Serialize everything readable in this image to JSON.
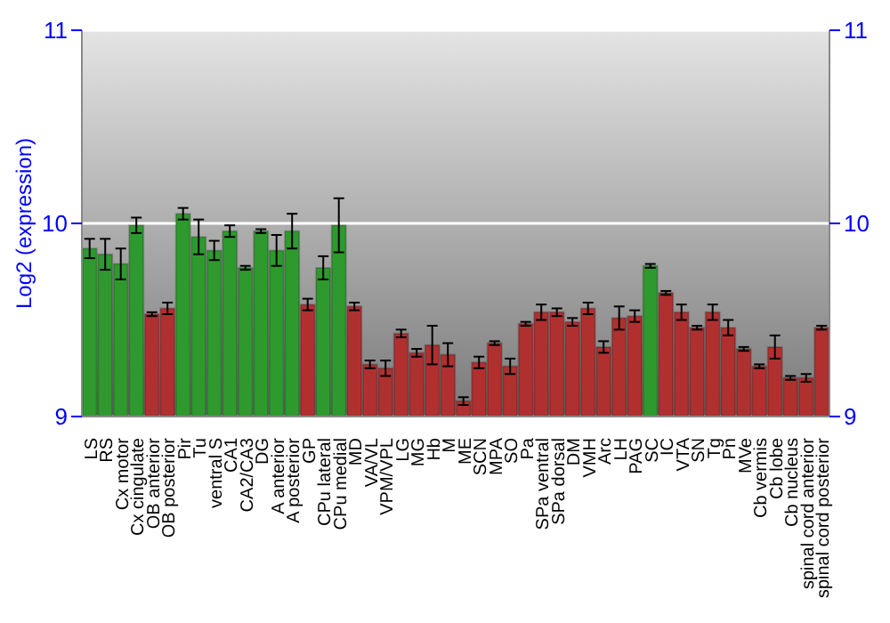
{
  "chart_data": {
    "type": "bar",
    "ylabel": "Log2 (expression)",
    "categories": [
      "LS",
      "RS",
      "Cx motor",
      "Cx cingulate",
      "OB anterior",
      "OB posterior",
      "Pir",
      "Tu",
      "ventral S",
      "CA1",
      "CA2/CA3",
      "DG",
      "A anterior",
      "A posterior",
      "GP",
      "CPu lateral",
      "CPu medial",
      "MD",
      "VA/VL",
      "VPM/VPL",
      "LG",
      "MG",
      "Hb",
      "M",
      "ME",
      "SCN",
      "MPA",
      "SO",
      "Pa",
      "SPa ventral",
      "SPa dorsal",
      "DM",
      "VMH",
      "Arc",
      "LH",
      "PAG",
      "SC",
      "IC",
      "VTA",
      "SN",
      "Tg",
      "Pn",
      "MVe",
      "Cb vermis",
      "Cb lobe",
      "Cb nucleus",
      "spinal cord anterior",
      "spinal cord posterior"
    ],
    "values": [
      9.87,
      9.84,
      9.79,
      9.99,
      9.53,
      9.56,
      10.05,
      9.93,
      9.86,
      9.96,
      9.77,
      9.96,
      9.86,
      9.96,
      9.58,
      9.77,
      9.99,
      9.57,
      9.27,
      9.25,
      9.43,
      9.33,
      9.37,
      9.32,
      9.08,
      9.28,
      9.38,
      9.26,
      9.48,
      9.54,
      9.54,
      9.49,
      9.56,
      9.36,
      9.51,
      9.52,
      9.78,
      9.64,
      9.54,
      9.46,
      9.54,
      9.46,
      9.35,
      9.26,
      9.36,
      9.2,
      9.2,
      9.46
    ],
    "errors": [
      0.05,
      0.08,
      0.08,
      0.04,
      0.01,
      0.03,
      0.03,
      0.09,
      0.05,
      0.03,
      0.01,
      0.01,
      0.08,
      0.09,
      0.03,
      0.06,
      0.14,
      0.02,
      0.02,
      0.04,
      0.02,
      0.02,
      0.1,
      0.06,
      0.02,
      0.03,
      0.01,
      0.04,
      0.01,
      0.04,
      0.02,
      0.02,
      0.03,
      0.03,
      0.06,
      0.03,
      0.01,
      0.01,
      0.04,
      0.01,
      0.04,
      0.04,
      0.01,
      0.01,
      0.06,
      0.01,
      0.02,
      0.01
    ],
    "colors": [
      "#2e9a2e",
      "#2e9a2e",
      "#2e9a2e",
      "#2e9a2e",
      "#b03030",
      "#b03030",
      "#2e9a2e",
      "#2e9a2e",
      "#2e9a2e",
      "#2e9a2e",
      "#2e9a2e",
      "#2e9a2e",
      "#2e9a2e",
      "#2e9a2e",
      "#b03030",
      "#2e9a2e",
      "#2e9a2e",
      "#b03030",
      "#b03030",
      "#b03030",
      "#b03030",
      "#b03030",
      "#b03030",
      "#b03030",
      "#b03030",
      "#b03030",
      "#b03030",
      "#b03030",
      "#b03030",
      "#b03030",
      "#b03030",
      "#b03030",
      "#b03030",
      "#b03030",
      "#b03030",
      "#b03030",
      "#2e9a2e",
      "#b03030",
      "#b03030",
      "#b03030",
      "#b03030",
      "#b03030",
      "#b03030",
      "#b03030",
      "#b03030",
      "#b03030",
      "#b03030",
      "#b03030"
    ],
    "ylim": [
      9,
      11
    ],
    "yticks": [
      9,
      10,
      11
    ],
    "y2lim": [
      9,
      11
    ],
    "y2ticks": [
      9,
      10,
      11
    ],
    "grid": "y"
  }
}
